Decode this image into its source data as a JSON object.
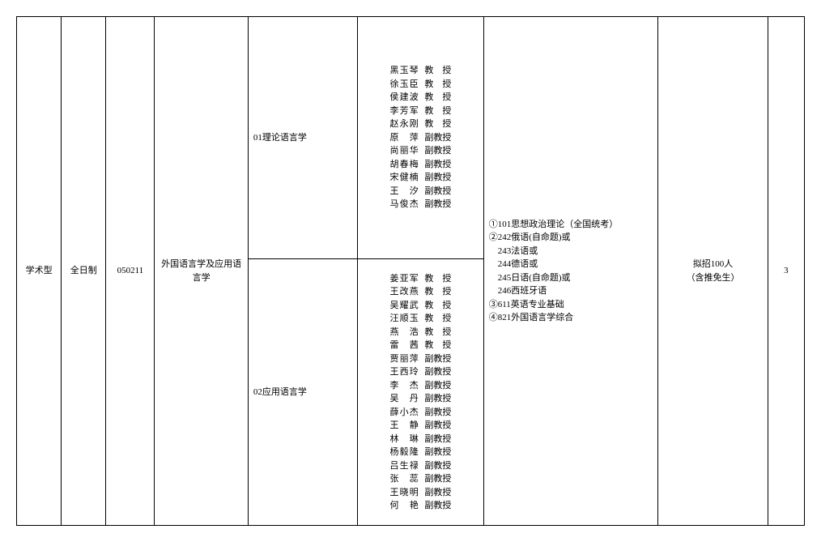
{
  "row": {
    "degree_type": "学术型",
    "study_mode": "全日制",
    "major_code": "050211",
    "major_name": "外国语言学及应用语言学",
    "quota": "拟招100人\n（含推免生）",
    "duration": "3"
  },
  "directions": [
    {
      "code": "01",
      "name": "理论语言学"
    },
    {
      "code": "02",
      "name": "应用语言学"
    }
  ],
  "faculty1": [
    {
      "name": "黑玉琴",
      "title": "教　授",
      "prof": true
    },
    {
      "name": "徐玉臣",
      "title": "教　授",
      "prof": true
    },
    {
      "name": "侯建波",
      "title": "教　授",
      "prof": true
    },
    {
      "name": "李芳军",
      "title": "教　授",
      "prof": true
    },
    {
      "name": "赵永刚",
      "title": "教　授",
      "prof": true
    },
    {
      "name": "原　萍",
      "title": "副教授",
      "prof": false
    },
    {
      "name": "尚丽华",
      "title": "副教授",
      "prof": false
    },
    {
      "name": "胡春梅",
      "title": "副教授",
      "prof": false
    },
    {
      "name": "宋健楠",
      "title": "副教授",
      "prof": false
    },
    {
      "name": "王　汐",
      "title": "副教授",
      "prof": false
    },
    {
      "name": "马俊杰",
      "title": "副教授",
      "prof": false
    }
  ],
  "faculty2": [
    {
      "name": "姜亚军",
      "title": "教　授",
      "prof": true
    },
    {
      "name": "王改燕",
      "title": "教　授",
      "prof": true
    },
    {
      "name": "吴耀武",
      "title": "教　授",
      "prof": true
    },
    {
      "name": "汪顺玉",
      "title": "教　授",
      "prof": true
    },
    {
      "name": "燕　浩",
      "title": "教　授",
      "prof": true
    },
    {
      "name": "雷　茜",
      "title": "教　授",
      "prof": true
    },
    {
      "name": "贾丽萍",
      "title": "副教授",
      "prof": false
    },
    {
      "name": "王西玲",
      "title": "副教授",
      "prof": false
    },
    {
      "name": "李　杰",
      "title": "副教授",
      "prof": false
    },
    {
      "name": "吴　丹",
      "title": "副教授",
      "prof": false
    },
    {
      "name": "薛小杰",
      "title": "副教授",
      "prof": false
    },
    {
      "name": "王　静",
      "title": "副教授",
      "prof": false
    },
    {
      "name": "林　琳",
      "title": "副教授",
      "prof": false
    },
    {
      "name": "杨毅隆",
      "title": "副教授",
      "prof": false
    },
    {
      "name": "吕生禄",
      "title": "副教授",
      "prof": false
    },
    {
      "name": "张　蕊",
      "title": "副教授",
      "prof": false
    },
    {
      "name": "王晓明",
      "title": "副教授",
      "prof": false
    },
    {
      "name": "何　艳",
      "title": "副教授",
      "prof": false
    }
  ],
  "exams": [
    "①101思想政治理论（全国统考）",
    "②242俄语(自命题)或",
    "　243法语或",
    "　244德语或",
    "　245日语(自命题)或",
    "　246西班牙语",
    "③611英语专业基础",
    "④821外国语言学综合"
  ],
  "col_widths": {
    "c1": 55,
    "c2": 55,
    "c3": 60,
    "c4": 115,
    "c5": 135,
    "c6": 155,
    "c7": 215,
    "c8": 135,
    "c9": 45
  }
}
